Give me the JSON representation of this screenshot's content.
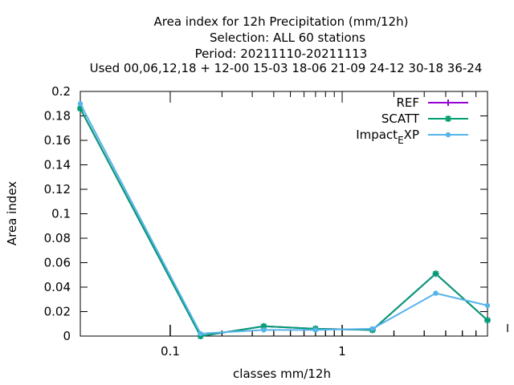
{
  "chart_data": {
    "type": "line",
    "title_lines": [
      "Area index  for 12h Precipitation (mm/12h)",
      "Selection: ALL     60 stations",
      "Period: 20211110-20211113",
      "Used  00,06,12,18 + 12-00 15-03 18-06 21-09 24-12 30-18 36-24"
    ],
    "xlabel": "classes mm/12h",
    "ylabel": "Area index",
    "x_scale": "log",
    "xlim": [
      0.03,
      7
    ],
    "ylim": [
      0,
      0.2
    ],
    "x_ticks": [
      {
        "value": 0.1,
        "label": "0.1"
      },
      {
        "value": 1,
        "label": "1"
      }
    ],
    "x_minor_ticks": [
      0.2,
      0.3,
      0.4,
      0.5,
      0.6,
      0.7,
      0.8,
      0.9,
      2,
      3,
      4,
      5,
      6
    ],
    "y_ticks": [
      {
        "value": 0,
        "label": "0"
      },
      {
        "value": 0.02,
        "label": "0.02"
      },
      {
        "value": 0.04,
        "label": "0.04"
      },
      {
        "value": 0.06,
        "label": "0.06"
      },
      {
        "value": 0.08,
        "label": "0.08"
      },
      {
        "value": 0.1,
        "label": "0.1"
      },
      {
        "value": 0.12,
        "label": "0.12"
      },
      {
        "value": 0.14,
        "label": "0.14"
      },
      {
        "value": 0.16,
        "label": "0.16"
      },
      {
        "value": 0.18,
        "label": "0.18"
      },
      {
        "value": 0.2,
        "label": "0.2"
      }
    ],
    "grid": false,
    "legend_position": "top-right",
    "series": [
      {
        "name": "REF",
        "color": "#9400d3",
        "marker": "plus",
        "x": [
          0.03,
          0.15,
          0.35,
          0.7,
          1.5,
          3.5,
          7
        ],
        "y": [
          0.186,
          0.0,
          0.008,
          0.006,
          0.005,
          0.051,
          0.013
        ]
      },
      {
        "name": "SCATT",
        "color": "#009e73",
        "marker": "star",
        "x": [
          0.03,
          0.15,
          0.35,
          0.7,
          1.5,
          3.5,
          7
        ],
        "y": [
          0.186,
          0.0,
          0.008,
          0.006,
          0.005,
          0.051,
          0.013
        ]
      },
      {
        "name": "Impact_EXP",
        "name_parts": [
          "Impact",
          "E",
          "XP"
        ],
        "color": "#56b4e9",
        "marker": "dot",
        "x": [
          0.03,
          0.15,
          0.35,
          0.7,
          1.5,
          3.5,
          7
        ],
        "y": [
          0.19,
          0.002,
          0.005,
          0.005,
          0.006,
          0.035,
          0.025
        ]
      }
    ]
  }
}
